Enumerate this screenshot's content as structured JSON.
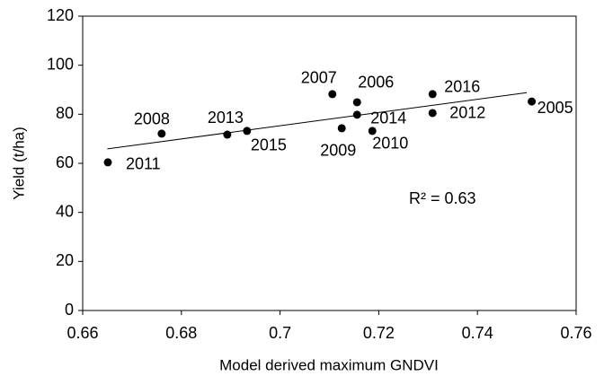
{
  "chart_data": {
    "type": "scatter",
    "x_label": "Model derived maximum GNDVI",
    "y_label": "Yield (t/ha)",
    "annotation": "R² = 0.63",
    "series": [
      {
        "color": "#000000",
        "labels": [
          "2011",
          "2008",
          "2013",
          "2015",
          "2007",
          "2006",
          "2014",
          "2009",
          "2010",
          "2016",
          "2012",
          "2005"
        ],
        "x": [
          0.6651,
          0.676,
          0.6893,
          0.6933,
          0.7106,
          0.7156,
          0.7156,
          0.7125,
          0.7187,
          0.7309,
          0.7309,
          0.751
        ],
        "values": [
          60.4,
          72.1,
          71.7,
          73.2,
          88.2,
          84.9,
          79.8,
          74.3,
          73.2,
          88.2,
          80.5,
          85.2
        ]
      }
    ],
    "trendline": {
      "x": [
        0.665,
        0.75
      ],
      "y": [
        65.9,
        88.8
      ]
    },
    "xlim": [
      0.66,
      0.76
    ],
    "xticks": [
      0.66,
      0.68,
      0.7,
      0.72,
      0.74,
      0.76
    ],
    "ylim": [
      0,
      120
    ],
    "yticks": [
      0,
      20,
      40,
      60,
      80,
      100,
      120
    ]
  }
}
